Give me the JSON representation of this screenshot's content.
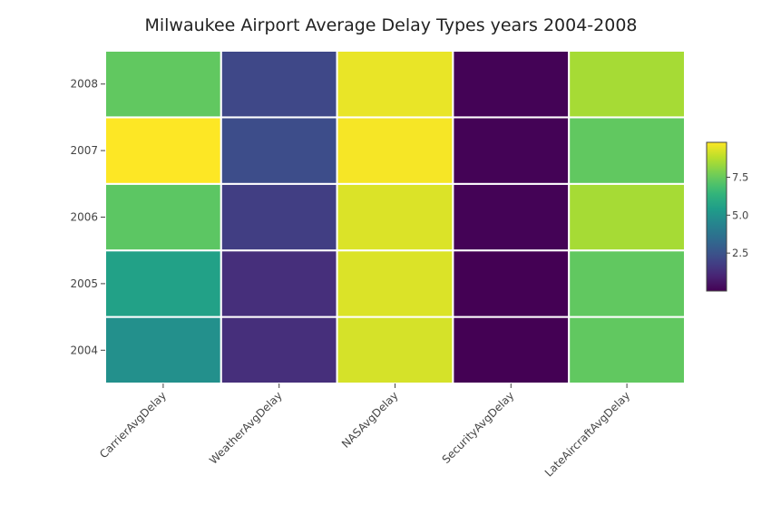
{
  "chart_data": {
    "type": "heatmap",
    "title": "Milwaukee Airport Average Delay Types years 2004-2008",
    "x_categories": [
      "CarrierAvgDelay",
      "WeatherAvgDelay",
      "NASAvgDelay",
      "SecurityAvgDelay",
      "LateAircraftAvgDelay"
    ],
    "y_categories": [
      "2004",
      "2005",
      "2006",
      "2007",
      "2008"
    ],
    "z": [
      [
        4.9,
        1.3,
        9.2,
        0.0,
        7.4
      ],
      [
        5.6,
        1.3,
        9.3,
        0.0,
        7.4
      ],
      [
        7.3,
        1.8,
        9.3,
        0.05,
        8.5
      ],
      [
        9.8,
        2.3,
        9.7,
        0.05,
        7.4
      ],
      [
        7.4,
        2.1,
        9.5,
        0.05,
        8.5
      ]
    ],
    "zmin": 0.0,
    "zmax": 9.8,
    "colorscale": "Viridis",
    "colorbar": {
      "ticks": [
        "2.5",
        "5.0",
        "7.5"
      ],
      "tick_values": [
        2.5,
        5.0,
        7.5
      ]
    },
    "grid": false,
    "legend": "right"
  }
}
